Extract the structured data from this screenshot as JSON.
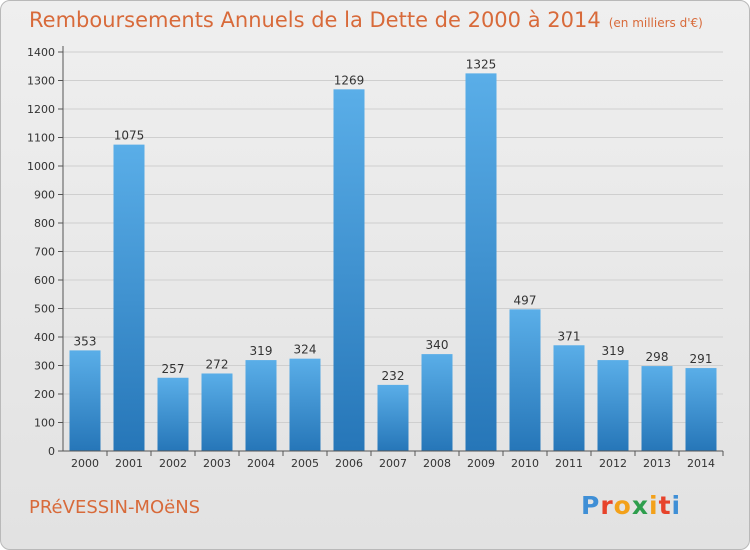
{
  "header": {
    "title": "Remboursements Annuels de la Dette de 2000 à 2014",
    "unit": "(en milliers d'€)"
  },
  "footer": {
    "commune": "PRéVESSIN-MOëNS",
    "logo": "Proxiti"
  },
  "colors": {
    "title": "#d86a3a",
    "bar_top": "#5aaee8",
    "bar_bottom": "#2676b8",
    "grid": "#cfcfcf",
    "axis": "#555555"
  },
  "chart_data": {
    "type": "bar",
    "title": "Remboursements Annuels de la Dette de 2000 à 2014",
    "ylabel": "",
    "xlabel": "",
    "categories": [
      "2000",
      "2001",
      "2002",
      "2003",
      "2004",
      "2005",
      "2006",
      "2007",
      "2008",
      "2009",
      "2010",
      "2011",
      "2012",
      "2013",
      "2014"
    ],
    "values": [
      353,
      1075,
      257,
      272,
      319,
      324,
      1269,
      232,
      340,
      1325,
      497,
      371,
      319,
      298,
      291
    ],
    "ylim": [
      0,
      1400
    ],
    "yticks": [
      0,
      100,
      200,
      300,
      400,
      500,
      600,
      700,
      800,
      900,
      1000,
      1100,
      1200,
      1300,
      1400
    ],
    "grid": true,
    "data_labels": true
  }
}
